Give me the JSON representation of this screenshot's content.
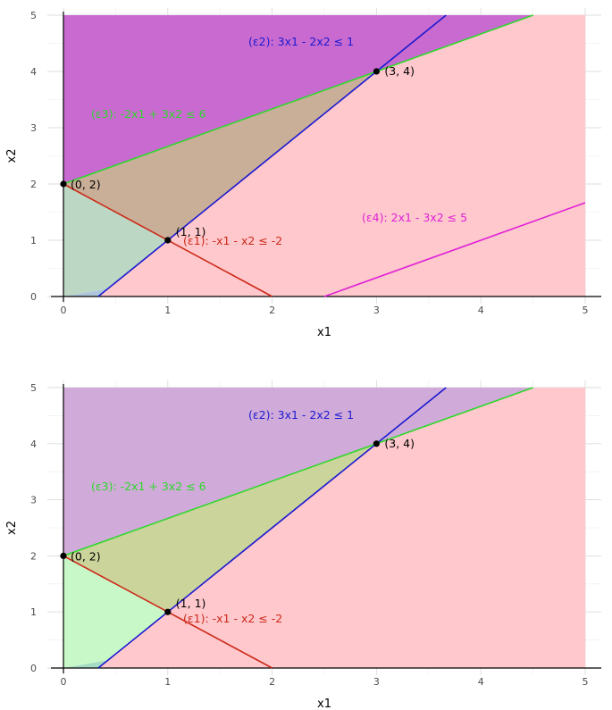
{
  "colors": {
    "e1": "#cc2a1a",
    "e2": "#1a1ad0",
    "e3": "#2ed82e",
    "e4": "#e020d8",
    "region_e3_violation": "#c96ad0",
    "region_e2_violation": "#ffc8cc",
    "region_e1_violation": "#aec6dc",
    "region_e4_violation": "#c8dca8",
    "feasible_top": "#c9ae98",
    "region_bottom_feasible": "#cbd49a",
    "region_bottom_e1_violation": "#a4dcc4",
    "region_bottom_lower": "#c8f8c8",
    "region_bottom_upper": "#d0aad8"
  },
  "chart_data": [
    {
      "type": "area",
      "xlabel": "x1",
      "ylabel": "x2",
      "xlim": [
        0,
        5
      ],
      "ylim": [
        0,
        5
      ],
      "xticks": [
        "0",
        "1",
        "2",
        "3",
        "4",
        "5"
      ],
      "yticks": [
        "0",
        "1",
        "2",
        "3",
        "4",
        "5"
      ],
      "grid": true,
      "constraints": [
        {
          "id": "e1",
          "label": "(ε1): -x1 - x2 ≤ -2",
          "a": -1,
          "b": -1,
          "c": -2
        },
        {
          "id": "e2",
          "label": "(ε2): 3x1 - 2x2 ≤ 1",
          "a": 3,
          "b": -2,
          "c": 1
        },
        {
          "id": "e3",
          "label": "(ε3): -2x1 + 3x2 ≤ 6",
          "a": -2,
          "b": 3,
          "c": 6
        },
        {
          "id": "e4",
          "label": "(ε4): 2x1 - 3x2 ≤ 5",
          "a": 2,
          "b": -3,
          "c": 5
        }
      ],
      "points": [
        {
          "x": 0,
          "y": 2,
          "label": "(0, 2)"
        },
        {
          "x": 1,
          "y": 1,
          "label": "(1, 1)"
        },
        {
          "x": 3,
          "y": 4,
          "label": "(3, 4)"
        }
      ]
    },
    {
      "type": "area",
      "xlabel": "x1",
      "ylabel": "x2",
      "xlim": [
        0,
        5
      ],
      "ylim": [
        0,
        5
      ],
      "xticks": [
        "0",
        "1",
        "2",
        "3",
        "4",
        "5"
      ],
      "yticks": [
        "0",
        "1",
        "2",
        "3",
        "4",
        "5"
      ],
      "grid": true,
      "constraints": [
        {
          "id": "e1",
          "label": "(ε1): -x1 - x2 ≤ -2",
          "a": -1,
          "b": -1,
          "c": -2
        },
        {
          "id": "e2",
          "label": "(ε2): 3x1 - 2x2 ≤ 1",
          "a": 3,
          "b": -2,
          "c": 1
        },
        {
          "id": "e3",
          "label": "(ε3): -2x1 + 3x2 ≤ 6",
          "a": -2,
          "b": 3,
          "c": 6
        }
      ],
      "points": [
        {
          "x": 0,
          "y": 2,
          "label": "(0, 2)"
        },
        {
          "x": 1,
          "y": 1,
          "label": "(1, 1)"
        },
        {
          "x": 3,
          "y": 4,
          "label": "(3, 4)"
        }
      ]
    }
  ]
}
